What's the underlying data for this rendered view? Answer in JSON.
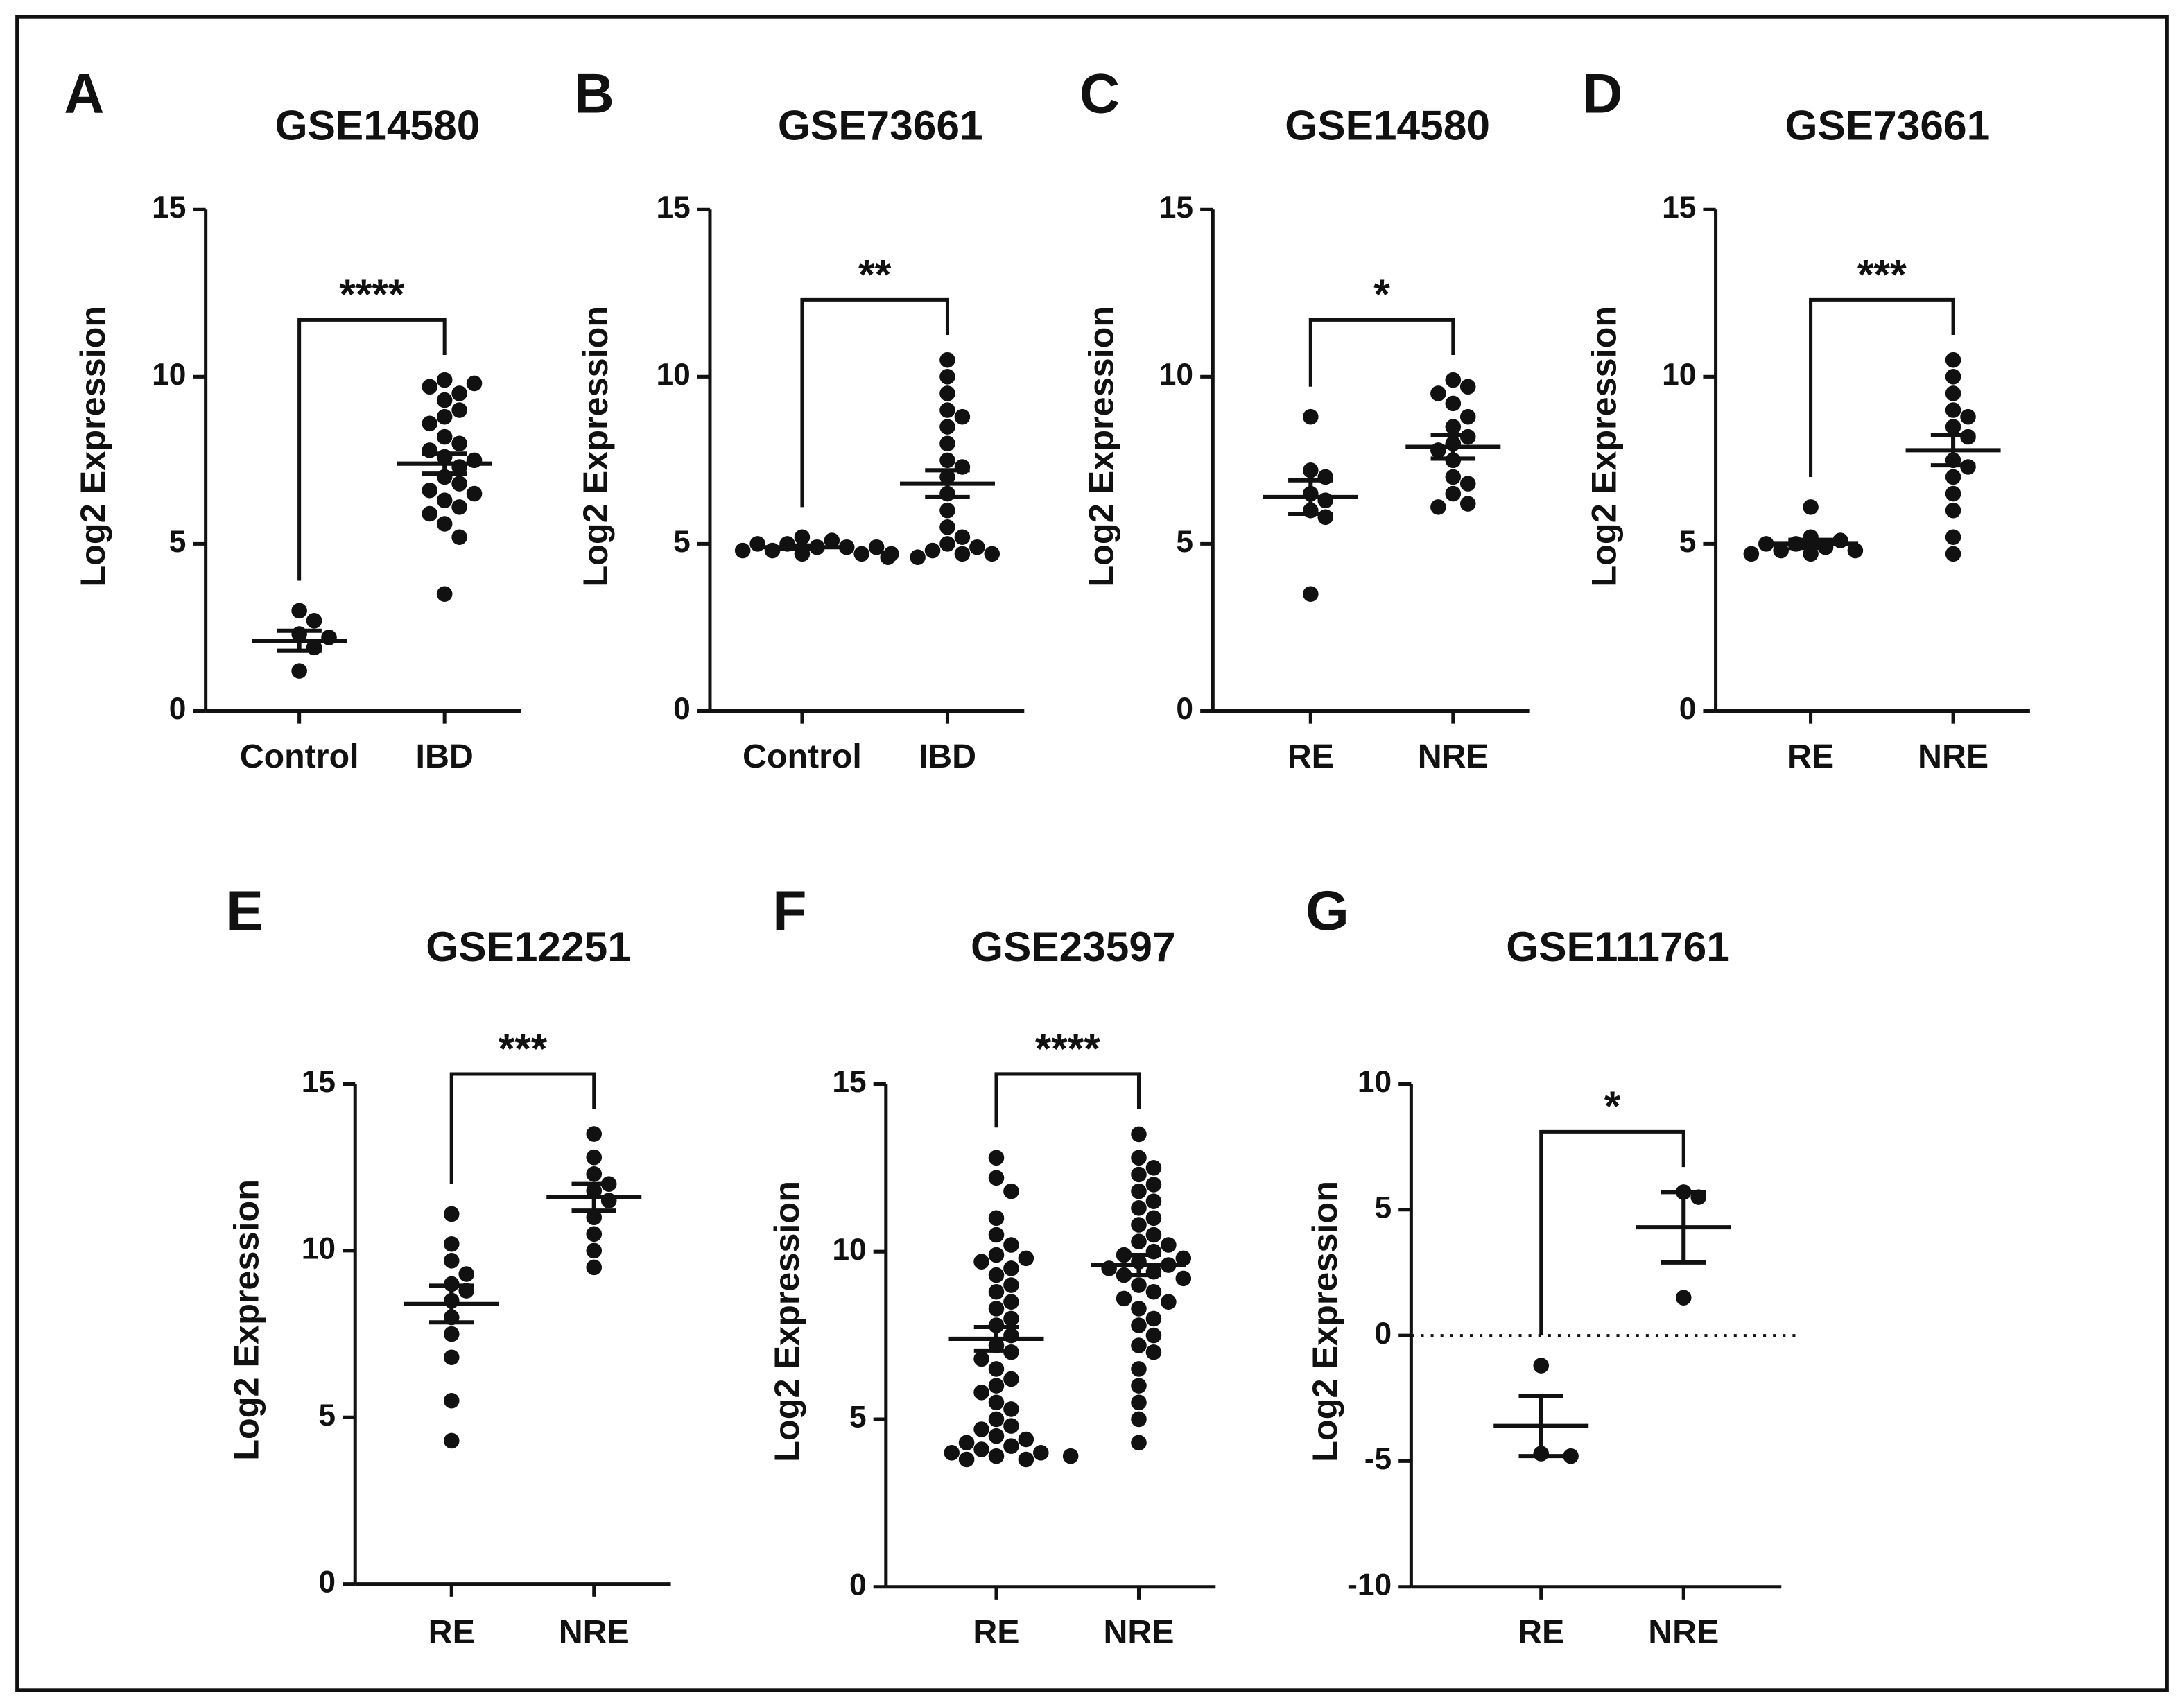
{
  "chart_data": [
    {
      "type": "strip",
      "label": "A",
      "title": "GSE14580",
      "y_label": "Log2 Expression",
      "categories": [
        "Control",
        "IBD"
      ],
      "values": [
        [
          3.0,
          2.7,
          2.3,
          2.2,
          1.9,
          1.2
        ],
        [
          9.9,
          9.8,
          9.7,
          9.5,
          9.3,
          9.0,
          8.8,
          8.6,
          8.2,
          8.0,
          7.8,
          7.6,
          7.5,
          7.3,
          7.0,
          6.8,
          6.6,
          6.5,
          6.3,
          6.1,
          5.9,
          5.6,
          5.2,
          3.5
        ]
      ],
      "mean": [
        2.1,
        7.4
      ],
      "sem": [
        0.3,
        0.3
      ],
      "ylim": [
        0,
        15
      ],
      "yticks": [
        0,
        5,
        10,
        15
      ],
      "significance": "****"
    },
    {
      "type": "strip",
      "label": "B",
      "title": "GSE73661",
      "y_label": "Log2 Expression",
      "categories": [
        "Control",
        "IBD"
      ],
      "values": [
        [
          5.2,
          5.1,
          5.0,
          5.0,
          4.9,
          4.9,
          4.9,
          4.8,
          4.8,
          4.7,
          4.7,
          4.7
        ],
        [
          10.5,
          10.0,
          9.5,
          9.0,
          8.8,
          8.5,
          8.0,
          7.5,
          7.3,
          7.0,
          6.5,
          6.0,
          5.5,
          5.2,
          5.0,
          4.9,
          4.8,
          4.7,
          4.7,
          4.6,
          4.6
        ]
      ],
      "mean": [
        4.9,
        6.8
      ],
      "sem": [
        0.05,
        0.4
      ],
      "ylim": [
        0,
        15
      ],
      "yticks": [
        0,
        5,
        10,
        15
      ],
      "significance": "**"
    },
    {
      "type": "strip",
      "label": "C",
      "title": "GSE14580",
      "y_label": "Log2 Expression",
      "categories": [
        "RE",
        "NRE"
      ],
      "values": [
        [
          8.8,
          7.2,
          7.0,
          6.5,
          6.3,
          6.0,
          5.8,
          3.5
        ],
        [
          9.9,
          9.7,
          9.5,
          9.2,
          8.8,
          8.5,
          8.2,
          8.0,
          7.8,
          7.5,
          7.0,
          6.8,
          6.5,
          6.2,
          6.1
        ]
      ],
      "mean": [
        6.4,
        7.9
      ],
      "sem": [
        0.5,
        0.35
      ],
      "ylim": [
        0,
        15
      ],
      "yticks": [
        0,
        5,
        10,
        15
      ],
      "significance": "*"
    },
    {
      "type": "strip",
      "label": "D",
      "title": "GSE73661",
      "y_label": "Log2 Expression",
      "categories": [
        "RE",
        "NRE"
      ],
      "values": [
        [
          6.1,
          5.2,
          5.1,
          5.0,
          5.0,
          4.9,
          4.8,
          4.8,
          4.7,
          4.7
        ],
        [
          10.5,
          10.0,
          9.5,
          9.0,
          8.8,
          8.5,
          8.2,
          7.5,
          7.3,
          7.0,
          6.5,
          6.0,
          5.2,
          4.7
        ]
      ],
      "mean": [
        5.0,
        7.8
      ],
      "sem": [
        0.12,
        0.45
      ],
      "ylim": [
        0,
        15
      ],
      "yticks": [
        0,
        5,
        10,
        15
      ],
      "significance": "***"
    },
    {
      "type": "strip",
      "label": "E",
      "title": "GSE12251",
      "y_label": "Log2 Expression",
      "categories": [
        "RE",
        "NRE"
      ],
      "values": [
        [
          11.1,
          10.2,
          9.7,
          9.3,
          9.0,
          8.8,
          8.5,
          8.0,
          7.5,
          6.8,
          5.5,
          4.3
        ],
        [
          13.5,
          12.8,
          12.3,
          12.0,
          11.8,
          11.5,
          11.0,
          10.5,
          10.0,
          9.5
        ]
      ],
      "mean": [
        8.4,
        11.6
      ],
      "sem": [
        0.55,
        0.4
      ],
      "ylim": [
        0,
        15
      ],
      "yticks": [
        0,
        5,
        10,
        15
      ],
      "significance": "***"
    },
    {
      "type": "strip",
      "label": "F",
      "title": "GSE23597",
      "y_label": "Log2 Expression",
      "categories": [
        "RE",
        "NRE"
      ],
      "values": [
        [
          12.8,
          12.2,
          11.8,
          11.0,
          10.5,
          10.2,
          9.9,
          9.8,
          9.7,
          9.5,
          9.3,
          9.0,
          8.8,
          8.5,
          8.3,
          8.0,
          7.8,
          7.5,
          7.2,
          7.0,
          6.8,
          6.5,
          6.2,
          6.0,
          5.8,
          5.5,
          5.3,
          5.0,
          4.8,
          4.7,
          4.5,
          4.4,
          4.3,
          4.2,
          4.1,
          4.0,
          4.0,
          3.9,
          3.9,
          3.8,
          3.8
        ],
        [
          13.5,
          12.8,
          12.5,
          12.3,
          12.0,
          11.8,
          11.5,
          11.3,
          11.0,
          10.8,
          10.5,
          10.3,
          10.2,
          10.0,
          9.9,
          9.8,
          9.7,
          9.6,
          9.5,
          9.4,
          9.3,
          9.2,
          9.0,
          8.8,
          8.6,
          8.5,
          8.3,
          8.0,
          7.8,
          7.5,
          7.2,
          7.0,
          6.5,
          6.0,
          5.5,
          5.0,
          4.3
        ]
      ],
      "mean": [
        7.4,
        9.6
      ],
      "sem": [
        0.35,
        0.3
      ],
      "ylim": [
        0,
        15
      ],
      "yticks": [
        0,
        5,
        10,
        15
      ],
      "significance": "****"
    },
    {
      "type": "strip",
      "label": "G",
      "title": "GSE111761",
      "y_label": "Log2 Expression",
      "categories": [
        "RE",
        "NRE"
      ],
      "values": [
        [
          -1.2,
          -4.7,
          -4.8
        ],
        [
          5.7,
          5.5,
          1.5
        ]
      ],
      "mean": [
        -3.6,
        4.3
      ],
      "sem": [
        1.2,
        1.4
      ],
      "ylim": [
        -10,
        10
      ],
      "yticks": [
        -10,
        -5,
        0,
        5,
        10
      ],
      "significance": "*",
      "zero_line": true
    }
  ]
}
